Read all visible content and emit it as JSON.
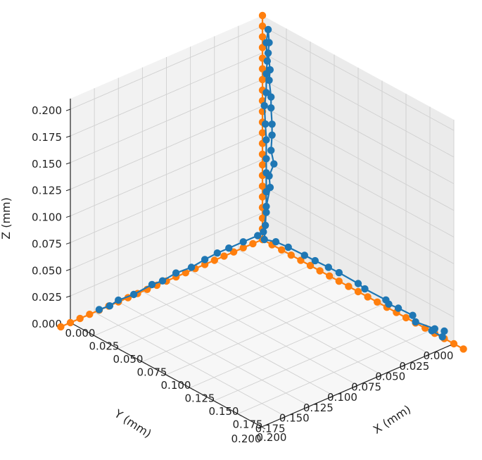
{
  "chart_data": {
    "type": "scatter",
    "projection": "3d",
    "xlabel": "X (mm)",
    "ylabel": "Y (mm)",
    "zlabel": "Z (mm)",
    "xlim": [
      0,
      0.2
    ],
    "ylim": [
      0,
      0.2
    ],
    "zlim": [
      0,
      0.21
    ],
    "xticks": [
      "0.000",
      "0.025",
      "0.050",
      "0.075",
      "0.100",
      "0.125",
      "0.150",
      "0.175",
      "0.200"
    ],
    "yticks": [
      "0.000",
      "0.025",
      "0.050",
      "0.075",
      "0.100",
      "0.125",
      "0.150",
      "0.175",
      "0.200"
    ],
    "zticks": [
      "0.000",
      "0.025",
      "0.050",
      "0.075",
      "0.100",
      "0.125",
      "0.150",
      "0.175",
      "0.200"
    ],
    "grid": true,
    "colors": {
      "blue": "#1f77b4",
      "orange": "#ff7f0e"
    },
    "series": [
      {
        "color": "#ff7f0e",
        "points": [
          [
            0.21,
            0,
            0
          ],
          [
            0.2,
            0,
            0
          ],
          [
            0.19,
            0,
            0
          ],
          [
            0.18,
            0,
            0
          ],
          [
            0.17,
            0,
            0
          ],
          [
            0.16,
            0,
            0
          ],
          [
            0.15,
            0,
            0
          ],
          [
            0.14,
            0,
            0
          ],
          [
            0.13,
            0,
            0
          ],
          [
            0.12,
            0,
            0
          ],
          [
            0.11,
            0,
            0
          ],
          [
            0.1,
            0,
            0
          ],
          [
            0.09,
            0,
            0
          ],
          [
            0.08,
            0,
            0
          ],
          [
            0.07,
            0,
            0
          ],
          [
            0.06,
            0,
            0
          ],
          [
            0.05,
            0,
            0
          ],
          [
            0.04,
            0,
            0
          ],
          [
            0.03,
            0,
            0
          ],
          [
            0.02,
            0,
            0
          ],
          [
            0.01,
            0,
            0
          ],
          [
            0,
            0,
            0
          ],
          [
            0,
            0,
            0.01
          ],
          [
            0,
            0,
            0.02
          ],
          [
            0,
            0,
            0.03
          ],
          [
            0,
            0,
            0.04
          ],
          [
            0,
            0,
            0.05
          ],
          [
            0,
            0,
            0.06
          ],
          [
            0,
            0,
            0.07
          ],
          [
            0,
            0,
            0.08
          ],
          [
            0,
            0,
            0.09
          ],
          [
            0,
            0,
            0.1
          ],
          [
            0,
            0,
            0.11
          ],
          [
            0,
            0,
            0.12
          ],
          [
            0,
            0,
            0.13
          ],
          [
            0,
            0,
            0.14
          ],
          [
            0,
            0,
            0.15
          ],
          [
            0,
            0,
            0.16
          ],
          [
            0,
            0,
            0.17
          ],
          [
            0,
            0,
            0.18
          ],
          [
            0,
            0,
            0.19
          ],
          [
            0,
            0,
            0.2
          ],
          [
            0,
            0,
            0.21
          ],
          [
            0,
            0,
            0
          ],
          [
            0,
            0.01,
            0
          ],
          [
            0,
            0.02,
            0
          ],
          [
            0,
            0.03,
            0
          ],
          [
            0,
            0.04,
            0
          ],
          [
            0,
            0.05,
            0
          ],
          [
            0,
            0.06,
            0
          ],
          [
            0,
            0.07,
            0
          ],
          [
            0,
            0.08,
            0
          ],
          [
            0,
            0.09,
            0
          ],
          [
            0,
            0.1,
            0
          ],
          [
            0,
            0.11,
            0
          ],
          [
            0,
            0.12,
            0
          ],
          [
            0,
            0.13,
            0
          ],
          [
            0,
            0.14,
            0
          ],
          [
            0,
            0.15,
            0
          ],
          [
            0,
            0.16,
            0
          ],
          [
            0,
            0.17,
            0
          ],
          [
            0,
            0.18,
            0
          ],
          [
            0,
            0.19,
            0
          ],
          [
            0,
            0.2,
            0
          ],
          [
            0,
            0.21,
            0
          ]
        ]
      },
      {
        "color": "#1f77b4",
        "points": [
          [
            0.19,
            0,
            0.007
          ],
          [
            0.193,
            0.005,
            0.005
          ],
          [
            0.185,
            0.008,
            0.008
          ],
          [
            0.182,
            0.002,
            0.006
          ],
          [
            0.168,
            0.008,
            0.008
          ],
          [
            0.162,
            0.005,
            0.01
          ],
          [
            0.15,
            0.008,
            0.012
          ],
          [
            0.14,
            0.008,
            0.011
          ],
          [
            0.132,
            0.003,
            0.009
          ],
          [
            0.115,
            0.008,
            0.013
          ],
          [
            0.105,
            0.005,
            0.012
          ],
          [
            0.088,
            0.008,
            0.015
          ],
          [
            0.075,
            0.006,
            0.013
          ],
          [
            0.063,
            0.008,
            0.014
          ],
          [
            0.05,
            0.006,
            0.012
          ],
          [
            0.035,
            0.008,
            0.013
          ],
          [
            0.02,
            0.006,
            0.01
          ],
          [
            0.01,
            0.008,
            0.008
          ],
          [
            0.009,
            0.006,
            0.02
          ],
          [
            0.012,
            0.008,
            0.04
          ],
          [
            0.014,
            0.006,
            0.058
          ],
          [
            0.015,
            0.008,
            0.07
          ],
          [
            0.018,
            0.006,
            0.082
          ],
          [
            0.017,
            0.008,
            0.095
          ],
          [
            0.016,
            0.006,
            0.108
          ],
          [
            0.018,
            0.008,
            0.12
          ],
          [
            0.015,
            0.006,
            0.133
          ],
          [
            0.017,
            0.008,
            0.145
          ],
          [
            0.013,
            0.006,
            0.158
          ],
          [
            0.016,
            0.008,
            0.17
          ],
          [
            0.012,
            0.006,
            0.183
          ],
          [
            0.015,
            0.008,
            0.195
          ],
          [
            0.012,
            0.006,
            0.205
          ],
          [
            0.008,
            0.004,
            0.19
          ],
          [
            0.011,
            0.006,
            0.175
          ],
          [
            0.007,
            0.003,
            0.16
          ],
          [
            0.01,
            0.006,
            0.145
          ],
          [
            0.006,
            0.004,
            0.13
          ],
          [
            0.009,
            0.006,
            0.115
          ],
          [
            0.007,
            0.003,
            0.098
          ],
          [
            0.01,
            0.006,
            0.083
          ],
          [
            0.008,
            0.004,
            0.068
          ],
          [
            0.01,
            0.006,
            0.052
          ],
          [
            0.007,
            0.003,
            0.03
          ],
          [
            0.006,
            0.005,
            0.012
          ],
          [
            0.005,
            0.01,
            0.01
          ],
          [
            0.005,
            0.025,
            0.01
          ],
          [
            0.005,
            0.04,
            0.01
          ],
          [
            0.005,
            0.052,
            0.01
          ],
          [
            0.005,
            0.065,
            0.009
          ],
          [
            0.006,
            0.08,
            0.008
          ],
          [
            0.005,
            0.095,
            0.008
          ],
          [
            0.006,
            0.11,
            0.007
          ],
          [
            0.005,
            0.12,
            0.007
          ],
          [
            0.006,
            0.14,
            0.006
          ],
          [
            0.005,
            0.155,
            0.006
          ],
          [
            0.006,
            0.165,
            0.005
          ],
          [
            0.005,
            0.175,
            0.005
          ]
        ]
      }
    ]
  }
}
